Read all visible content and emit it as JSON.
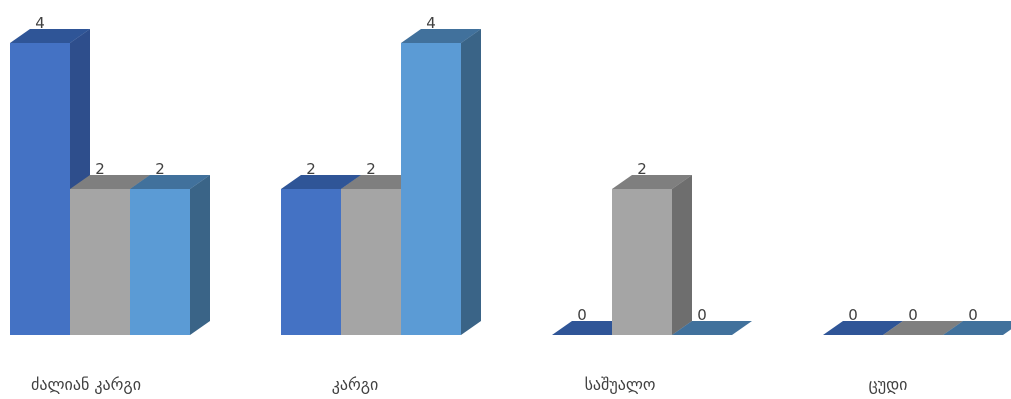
{
  "chart_data": {
    "type": "bar",
    "style": "3d-clustered-column",
    "categories": [
      "ძალიან კარგი",
      "კარგი",
      "საშუალო",
      "ცუდი"
    ],
    "series": [
      {
        "values": [
          4,
          2,
          0,
          0
        ],
        "colors": {
          "front": "#4472c4",
          "top": "#2f5597",
          "side": "#2e4e8c"
        }
      },
      {
        "values": [
          2,
          2,
          2,
          0
        ],
        "colors": {
          "front": "#a5a5a5",
          "top": "#7f7f7f",
          "side": "#6e6e6e"
        }
      },
      {
        "values": [
          2,
          4,
          0,
          0
        ],
        "colors": {
          "front": "#5b9bd5",
          "top": "#41719c",
          "side": "#3a6487"
        }
      }
    ],
    "ylim": [
      0,
      4
    ],
    "title": "",
    "xlabel": "",
    "ylabel": "",
    "legend": "none",
    "grid": false,
    "data_labels": true
  }
}
